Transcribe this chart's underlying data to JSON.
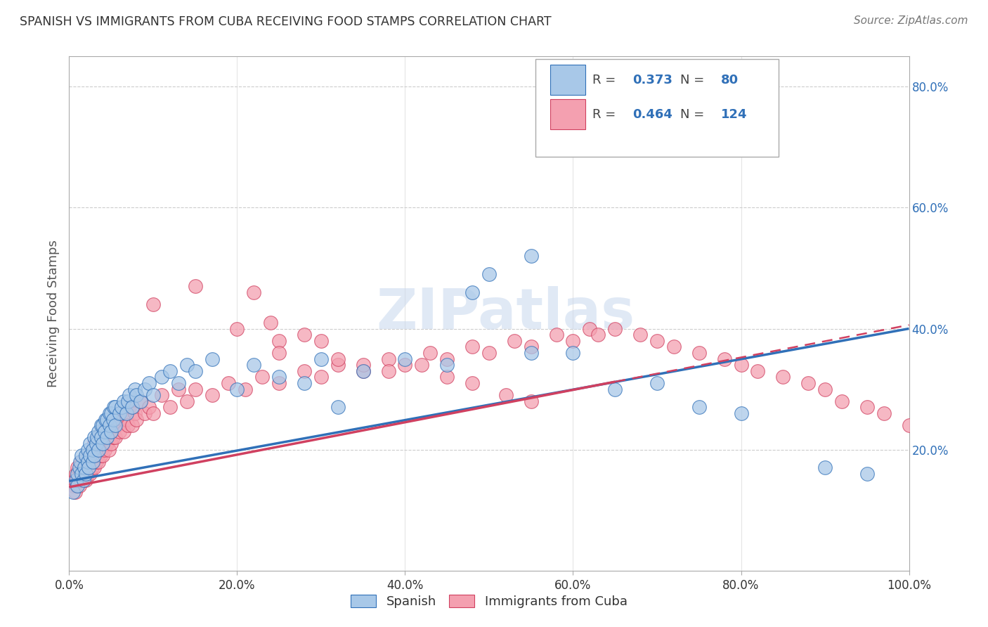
{
  "title": "SPANISH VS IMMIGRANTS FROM CUBA RECEIVING FOOD STAMPS CORRELATION CHART",
  "source": "Source: ZipAtlas.com",
  "ylabel": "Receiving Food Stamps",
  "xlim": [
    0.0,
    1.0
  ],
  "ylim": [
    0.0,
    0.85
  ],
  "xtick_labels": [
    "0.0%",
    "",
    "",
    "",
    "",
    "",
    "20.0%",
    "",
    "",
    "",
    "",
    "",
    "40.0%",
    "",
    "",
    "",
    "",
    "",
    "60.0%",
    "",
    "",
    "",
    "",
    "",
    "80.0%",
    "",
    "",
    "",
    "",
    "",
    "100.0%"
  ],
  "xtick_pos": [
    0.0,
    1.0
  ],
  "ytick_labels_right": [
    "20.0%",
    "40.0%",
    "60.0%",
    "80.0%"
  ],
  "ytick_positions_right": [
    0.2,
    0.4,
    0.6,
    0.8
  ],
  "blue_color": "#a8c8e8",
  "pink_color": "#f4a0b0",
  "blue_line_color": "#3070b8",
  "pink_line_color": "#d04060",
  "watermark": "ZIPatlas",
  "legend_label_blue": "Spanish",
  "legend_label_pink": "Immigrants from Cuba",
  "blue_R": "0.373",
  "blue_N": "80",
  "pink_R": "0.464",
  "pink_N": "124",
  "blue_intercept": 0.148,
  "blue_slope": 0.252,
  "pink_intercept": 0.138,
  "pink_slope": 0.268,
  "pink_line_end_x": 0.65,
  "blue_scatter_x": [
    0.005,
    0.008,
    0.01,
    0.01,
    0.012,
    0.013,
    0.015,
    0.015,
    0.017,
    0.018,
    0.02,
    0.02,
    0.022,
    0.022,
    0.023,
    0.025,
    0.025,
    0.028,
    0.028,
    0.03,
    0.03,
    0.032,
    0.033,
    0.035,
    0.035,
    0.038,
    0.038,
    0.04,
    0.04,
    0.042,
    0.043,
    0.045,
    0.045,
    0.048,
    0.048,
    0.05,
    0.05,
    0.052,
    0.053,
    0.055,
    0.055,
    0.06,
    0.062,
    0.065,
    0.068,
    0.07,
    0.072,
    0.075,
    0.078,
    0.08,
    0.085,
    0.09,
    0.095,
    0.1,
    0.11,
    0.12,
    0.13,
    0.14,
    0.15,
    0.17,
    0.2,
    0.22,
    0.25,
    0.28,
    0.3,
    0.35,
    0.4,
    0.45,
    0.5,
    0.55,
    0.6,
    0.65,
    0.7,
    0.75,
    0.8,
    0.9,
    0.95,
    0.32,
    0.48,
    0.55
  ],
  "blue_scatter_y": [
    0.13,
    0.15,
    0.16,
    0.14,
    0.17,
    0.18,
    0.16,
    0.19,
    0.15,
    0.17,
    0.16,
    0.19,
    0.18,
    0.2,
    0.17,
    0.19,
    0.21,
    0.18,
    0.2,
    0.19,
    0.22,
    0.21,
    0.22,
    0.2,
    0.23,
    0.22,
    0.24,
    0.21,
    0.24,
    0.23,
    0.25,
    0.22,
    0.25,
    0.24,
    0.26,
    0.23,
    0.26,
    0.25,
    0.27,
    0.24,
    0.27,
    0.26,
    0.27,
    0.28,
    0.26,
    0.28,
    0.29,
    0.27,
    0.3,
    0.29,
    0.28,
    0.3,
    0.31,
    0.29,
    0.32,
    0.33,
    0.31,
    0.34,
    0.33,
    0.35,
    0.3,
    0.34,
    0.32,
    0.31,
    0.35,
    0.33,
    0.35,
    0.34,
    0.49,
    0.36,
    0.36,
    0.3,
    0.31,
    0.27,
    0.26,
    0.17,
    0.16,
    0.27,
    0.46,
    0.52
  ],
  "pink_scatter_x": [
    0.005,
    0.006,
    0.007,
    0.008,
    0.009,
    0.01,
    0.01,
    0.012,
    0.013,
    0.014,
    0.015,
    0.015,
    0.017,
    0.017,
    0.018,
    0.019,
    0.02,
    0.02,
    0.022,
    0.022,
    0.023,
    0.024,
    0.025,
    0.025,
    0.027,
    0.027,
    0.028,
    0.029,
    0.03,
    0.03,
    0.032,
    0.032,
    0.033,
    0.034,
    0.035,
    0.035,
    0.037,
    0.038,
    0.038,
    0.04,
    0.04,
    0.042,
    0.043,
    0.045,
    0.045,
    0.047,
    0.048,
    0.05,
    0.05,
    0.052,
    0.053,
    0.055,
    0.057,
    0.06,
    0.062,
    0.065,
    0.068,
    0.07,
    0.072,
    0.075,
    0.078,
    0.08,
    0.085,
    0.09,
    0.095,
    0.1,
    0.11,
    0.12,
    0.13,
    0.14,
    0.15,
    0.17,
    0.19,
    0.21,
    0.23,
    0.25,
    0.28,
    0.3,
    0.32,
    0.35,
    0.38,
    0.4,
    0.43,
    0.45,
    0.48,
    0.5,
    0.53,
    0.55,
    0.58,
    0.6,
    0.62,
    0.63,
    0.65,
    0.68,
    0.7,
    0.72,
    0.75,
    0.78,
    0.8,
    0.82,
    0.85,
    0.88,
    0.9,
    0.92,
    0.95,
    0.97,
    1.0,
    0.1,
    0.15,
    0.2,
    0.24,
    0.25,
    0.25,
    0.22,
    0.28,
    0.3,
    0.32,
    0.35,
    0.38,
    0.42,
    0.45,
    0.48,
    0.52,
    0.55
  ],
  "pink_scatter_y": [
    0.14,
    0.15,
    0.13,
    0.16,
    0.14,
    0.15,
    0.17,
    0.14,
    0.16,
    0.15,
    0.16,
    0.18,
    0.15,
    0.17,
    0.16,
    0.18,
    0.15,
    0.17,
    0.16,
    0.19,
    0.17,
    0.18,
    0.16,
    0.19,
    0.17,
    0.2,
    0.18,
    0.19,
    0.17,
    0.21,
    0.18,
    0.2,
    0.19,
    0.21,
    0.18,
    0.22,
    0.19,
    0.2,
    0.22,
    0.19,
    0.23,
    0.2,
    0.22,
    0.21,
    0.23,
    0.2,
    0.24,
    0.21,
    0.23,
    0.22,
    0.25,
    0.22,
    0.24,
    0.23,
    0.26,
    0.23,
    0.25,
    0.24,
    0.27,
    0.24,
    0.26,
    0.25,
    0.28,
    0.26,
    0.27,
    0.26,
    0.29,
    0.27,
    0.3,
    0.28,
    0.3,
    0.29,
    0.31,
    0.3,
    0.32,
    0.31,
    0.33,
    0.32,
    0.34,
    0.33,
    0.35,
    0.34,
    0.36,
    0.35,
    0.37,
    0.36,
    0.38,
    0.37,
    0.39,
    0.38,
    0.4,
    0.39,
    0.4,
    0.39,
    0.38,
    0.37,
    0.36,
    0.35,
    0.34,
    0.33,
    0.32,
    0.31,
    0.3,
    0.28,
    0.27,
    0.26,
    0.24,
    0.44,
    0.47,
    0.4,
    0.41,
    0.38,
    0.36,
    0.46,
    0.39,
    0.38,
    0.35,
    0.34,
    0.33,
    0.34,
    0.32,
    0.31,
    0.29,
    0.28
  ]
}
